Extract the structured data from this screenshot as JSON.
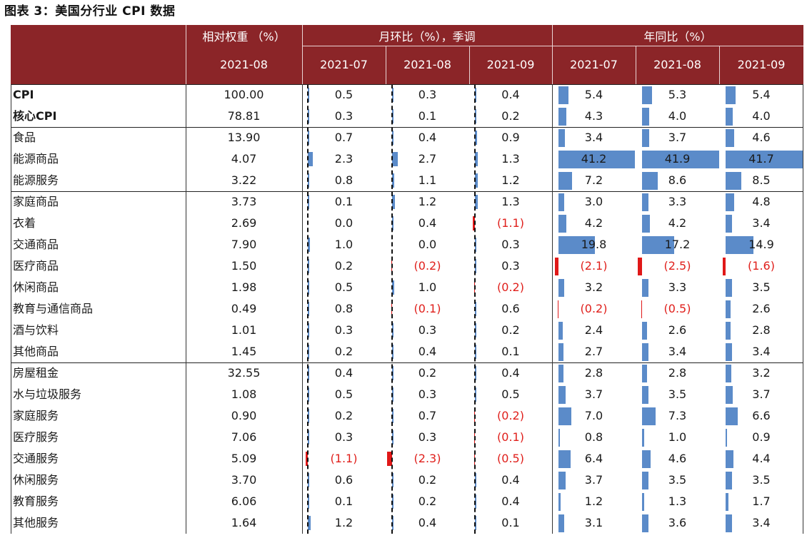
{
  "title": "图表 3：美国分行业 CPI 数据",
  "header": {
    "weight_label": "相对权重 （%）",
    "mom_label": "月环比（%），季调",
    "yoy_label": "年同比（%）",
    "weight_date": "2021-08",
    "mom_dates": [
      "2021-07",
      "2021-08",
      "2021-09"
    ],
    "yoy_dates": [
      "2021-07",
      "2021-08",
      "2021-09"
    ]
  },
  "colors": {
    "header_bg": "#8b2528",
    "bar_positive": "#5b8bc9",
    "bar_negative": "#e01818",
    "negative_text": "#e0201c"
  },
  "rows": [
    {
      "label": "CPI",
      "bold": true,
      "weight": "100.00",
      "mom": [
        "0.5",
        "0.3",
        "0.4"
      ],
      "yoy": [
        "5.4",
        "5.3",
        "5.4"
      ],
      "mom_v": [
        0.5,
        0.3,
        0.4
      ],
      "yoy_v": [
        5.4,
        5.3,
        5.4
      ]
    },
    {
      "label": "核心CPI",
      "bold": true,
      "weight": "78.81",
      "mom": [
        "0.3",
        "0.1",
        "0.2"
      ],
      "yoy": [
        "4.3",
        "4.0",
        "4.0"
      ],
      "mom_v": [
        0.3,
        0.1,
        0.2
      ],
      "yoy_v": [
        4.3,
        4.0,
        4.0
      ]
    },
    {
      "label": "食品",
      "weight": "13.90",
      "mom": [
        "0.7",
        "0.4",
        "0.9"
      ],
      "yoy": [
        "3.4",
        "3.7",
        "4.6"
      ],
      "mom_v": [
        0.7,
        0.4,
        0.9
      ],
      "yoy_v": [
        3.4,
        3.7,
        4.6
      ]
    },
    {
      "label": "能源商品",
      "weight": "4.07",
      "mom": [
        "2.3",
        "2.7",
        "1.3"
      ],
      "yoy": [
        "41.2",
        "41.9",
        "41.7"
      ],
      "mom_v": [
        2.3,
        2.7,
        1.3
      ],
      "yoy_v": [
        41.2,
        41.9,
        41.7
      ]
    },
    {
      "label": "能源服务",
      "weight": "3.22",
      "mom": [
        "0.8",
        "1.1",
        "1.2"
      ],
      "yoy": [
        "7.2",
        "8.6",
        "8.5"
      ],
      "mom_v": [
        0.8,
        1.1,
        1.2
      ],
      "yoy_v": [
        7.2,
        8.6,
        8.5
      ]
    },
    {
      "label": "家庭商品",
      "weight": "3.73",
      "mom": [
        "0.1",
        "1.2",
        "1.3"
      ],
      "yoy": [
        "3.0",
        "3.3",
        "4.8"
      ],
      "mom_v": [
        0.1,
        1.2,
        1.3
      ],
      "yoy_v": [
        3.0,
        3.3,
        4.8
      ]
    },
    {
      "label": "衣着",
      "weight": "2.69",
      "mom": [
        "0.0",
        "0.4",
        "(1.1)"
      ],
      "yoy": [
        "4.2",
        "4.2",
        "3.4"
      ],
      "mom_v": [
        0.0,
        0.4,
        -1.1
      ],
      "yoy_v": [
        4.2,
        4.2,
        3.4
      ]
    },
    {
      "label": "交通商品",
      "weight": "7.90",
      "mom": [
        "1.0",
        "0.0",
        "0.3"
      ],
      "yoy": [
        "19.8",
        "17.2",
        "14.9"
      ],
      "mom_v": [
        1.0,
        0.0,
        0.3
      ],
      "yoy_v": [
        19.8,
        17.2,
        14.9
      ]
    },
    {
      "label": "医疗商品",
      "weight": "1.50",
      "mom": [
        "0.2",
        "(0.2)",
        "0.3"
      ],
      "yoy": [
        "(2.1)",
        "(2.5)",
        "(1.6)"
      ],
      "mom_v": [
        0.2,
        -0.2,
        0.3
      ],
      "yoy_v": [
        -2.1,
        -2.5,
        -1.6
      ]
    },
    {
      "label": "休闲商品",
      "weight": "1.98",
      "mom": [
        "0.5",
        "1.0",
        "(0.2)"
      ],
      "yoy": [
        "3.2",
        "3.3",
        "3.5"
      ],
      "mom_v": [
        0.5,
        1.0,
        -0.2
      ],
      "yoy_v": [
        3.2,
        3.3,
        3.5
      ]
    },
    {
      "label": "教育与通信商品",
      "weight": "0.49",
      "mom": [
        "0.8",
        "(0.1)",
        "0.6"
      ],
      "yoy": [
        "(0.2)",
        "(0.5)",
        "2.6"
      ],
      "mom_v": [
        0.8,
        -0.1,
        0.6
      ],
      "yoy_v": [
        -0.2,
        -0.5,
        2.6
      ]
    },
    {
      "label": "酒与饮料",
      "weight": "1.01",
      "mom": [
        "0.3",
        "0.3",
        "0.2"
      ],
      "yoy": [
        "2.4",
        "2.6",
        "2.8"
      ],
      "mom_v": [
        0.3,
        0.3,
        0.2
      ],
      "yoy_v": [
        2.4,
        2.6,
        2.8
      ]
    },
    {
      "label": "其他商品",
      "weight": "1.45",
      "mom": [
        "0.2",
        "0.4",
        "0.1"
      ],
      "yoy": [
        "2.7",
        "3.4",
        "3.4"
      ],
      "mom_v": [
        0.2,
        0.4,
        0.1
      ],
      "yoy_v": [
        2.7,
        3.4,
        3.4
      ]
    },
    {
      "label": "房屋租金",
      "weight": "32.55",
      "mom": [
        "0.4",
        "0.2",
        "0.4"
      ],
      "yoy": [
        "2.8",
        "2.8",
        "3.2"
      ],
      "mom_v": [
        0.4,
        0.2,
        0.4
      ],
      "yoy_v": [
        2.8,
        2.8,
        3.2
      ]
    },
    {
      "label": "水与垃圾服务",
      "weight": "1.08",
      "mom": [
        "0.5",
        "0.3",
        "0.5"
      ],
      "yoy": [
        "3.7",
        "3.5",
        "3.7"
      ],
      "mom_v": [
        0.5,
        0.3,
        0.5
      ],
      "yoy_v": [
        3.7,
        3.5,
        3.7
      ]
    },
    {
      "label": "家庭服务",
      "weight": "0.90",
      "mom": [
        "0.2",
        "0.7",
        "(0.2)"
      ],
      "yoy": [
        "7.0",
        "7.3",
        "6.6"
      ],
      "mom_v": [
        0.2,
        0.7,
        -0.2
      ],
      "yoy_v": [
        7.0,
        7.3,
        6.6
      ]
    },
    {
      "label": "医疗服务",
      "weight": "7.06",
      "mom": [
        "0.3",
        "0.3",
        "(0.1)"
      ],
      "yoy": [
        "0.8",
        "1.0",
        "0.9"
      ],
      "mom_v": [
        0.3,
        0.3,
        -0.1
      ],
      "yoy_v": [
        0.8,
        1.0,
        0.9
      ]
    },
    {
      "label": "交通服务",
      "weight": "5.09",
      "mom": [
        "(1.1)",
        "(2.3)",
        "(0.5)"
      ],
      "yoy": [
        "6.4",
        "4.6",
        "4.4"
      ],
      "mom_v": [
        -1.1,
        -2.3,
        -0.5
      ],
      "yoy_v": [
        6.4,
        4.6,
        4.4
      ]
    },
    {
      "label": "休闲服务",
      "weight": "3.70",
      "mom": [
        "0.6",
        "0.2",
        "0.4"
      ],
      "yoy": [
        "3.7",
        "3.5",
        "3.5"
      ],
      "mom_v": [
        0.6,
        0.2,
        0.4
      ],
      "yoy_v": [
        3.7,
        3.5,
        3.5
      ]
    },
    {
      "label": "教育服务",
      "weight": "6.06",
      "mom": [
        "0.1",
        "0.2",
        "0.4"
      ],
      "yoy": [
        "1.2",
        "1.3",
        "1.7"
      ],
      "mom_v": [
        0.1,
        0.2,
        0.4
      ],
      "yoy_v": [
        1.2,
        1.3,
        1.7
      ]
    },
    {
      "label": "其他服务",
      "weight": "1.64",
      "mom": [
        "1.2",
        "0.4",
        "0.1"
      ],
      "yoy": [
        "3.1",
        "3.6",
        "3.4"
      ],
      "mom_v": [
        1.2,
        0.4,
        0.1
      ],
      "yoy_v": [
        3.1,
        3.6,
        3.4
      ]
    }
  ]
}
